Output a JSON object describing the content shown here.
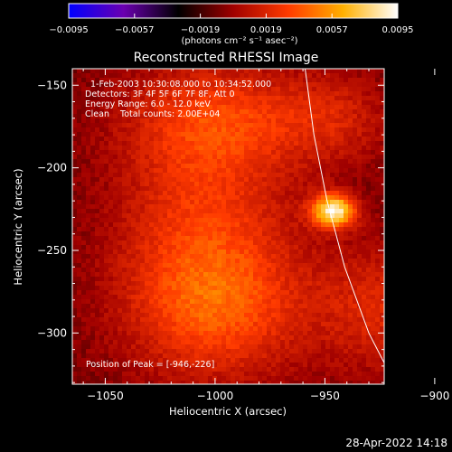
{
  "chart_data": {
    "type": "heatmap",
    "title": "Reconstructed RHESSI Image",
    "xlabel": "Heliocentric X (arcsec)",
    "ylabel": "Heliocentric Y (arcsec)",
    "xlim": [
      -1065,
      -923
    ],
    "ylim": [
      -331,
      -140
    ],
    "x_ticks": [
      -1050,
      -1000,
      -950,
      -900
    ],
    "y_ticks": [
      -150,
      -200,
      -250,
      -300
    ],
    "x_tick_labels": [
      "−1050",
      "−1000",
      "−950",
      "−900"
    ],
    "y_tick_labels": [
      "−150",
      "−200",
      "−250",
      "−300"
    ],
    "colorbar": {
      "range": [
        -0.0095,
        0.0095
      ],
      "ticks": [
        -0.0095,
        -0.0057,
        -0.0019,
        0.0019,
        0.0057,
        0.0095
      ],
      "tick_labels": [
        "−0.0095",
        "−0.0057",
        "−0.0019",
        "0.0019",
        "0.0057",
        "0.0095"
      ],
      "unit_label": "(photons cm⁻² s⁻¹ asec⁻²)",
      "colors": [
        "#0000ff",
        "#6a00b0",
        "#000000",
        "#a00000",
        "#ff3a00",
        "#ffb000",
        "#ffffff"
      ]
    },
    "annotations": [
      "1-Feb-2003 10:30:08.000 to 10:34:52.000",
      "Detectors: 3F 4F 5F 6F 7F 8F, Att 0",
      "Energy Range: 6.0 - 12.0 keV",
      "Clean    Total counts: 2.00E+04"
    ],
    "peak_label": "Position of Peak = [-946,-226]",
    "peak": {
      "x": -946,
      "y": -226,
      "value": 0.0095
    },
    "diffuse_sources": [
      {
        "x": -1005,
        "y": -230,
        "sx": 28,
        "sy": 55,
        "value": 0.0035
      },
      {
        "x": -998,
        "y": -285,
        "sx": 30,
        "sy": 30,
        "value": 0.0033
      },
      {
        "x": -995,
        "y": -170,
        "sx": 32,
        "sy": 22,
        "value": 0.0027
      },
      {
        "x": -925,
        "y": -285,
        "sx": 20,
        "sy": 28,
        "value": 0.0027
      },
      {
        "x": -945,
        "y": -170,
        "sx": 18,
        "sy": 20,
        "value": 0.002
      }
    ],
    "limb_curve": [
      [
        -959,
        -140
      ],
      [
        -955,
        -180
      ],
      [
        -949,
        -220
      ],
      [
        -941,
        -260
      ],
      [
        -930,
        -300
      ],
      [
        -918,
        -331
      ]
    ]
  },
  "footer": {
    "timestamp": "28-Apr-2022 14:18"
  }
}
